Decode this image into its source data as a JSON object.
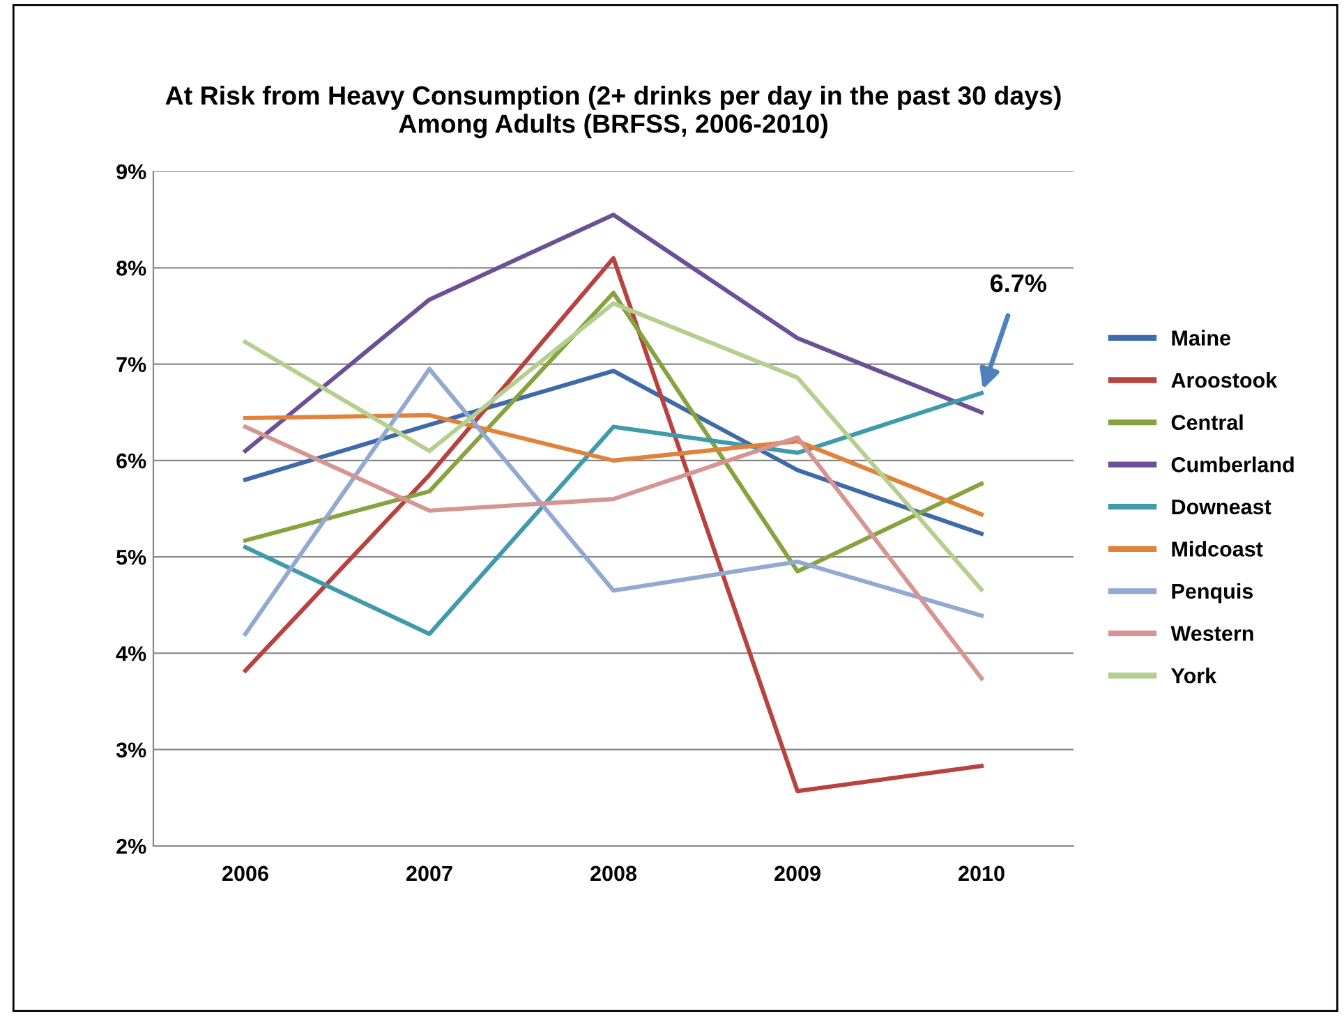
{
  "chart_data": {
    "type": "line",
    "title": "At Risk from Heavy Consumption (2+ drinks per day in the past 30 days)\nAmong Adults (BRFSS, 2006-2010)",
    "categories": [
      "2006",
      "2007",
      "2008",
      "2009",
      "2010"
    ],
    "series": [
      {
        "name": "Maine",
        "color": "#3e6aa8",
        "values": [
          5.8,
          6.37,
          6.93,
          5.9,
          5.24
        ]
      },
      {
        "name": "Aroostook",
        "color": "#b8423f",
        "values": [
          3.82,
          5.85,
          8.1,
          2.57,
          2.83
        ]
      },
      {
        "name": "Central",
        "color": "#87a33f",
        "values": [
          5.17,
          5.68,
          7.74,
          4.85,
          5.76
        ]
      },
      {
        "name": "Cumberland",
        "color": "#6d4f96",
        "values": [
          6.1,
          7.67,
          8.55,
          7.27,
          6.5
        ]
      },
      {
        "name": "Downeast",
        "color": "#3f9aab",
        "values": [
          5.1,
          4.2,
          6.35,
          6.08,
          6.7
        ]
      },
      {
        "name": "Midcoast",
        "color": "#e0833a",
        "values": [
          6.44,
          6.47,
          6.0,
          6.2,
          5.44
        ]
      },
      {
        "name": "Penquis",
        "color": "#93a9d2",
        "values": [
          4.2,
          6.95,
          4.65,
          4.95,
          4.39
        ]
      },
      {
        "name": "Western",
        "color": "#d69593",
        "values": [
          6.35,
          5.48,
          5.6,
          6.24,
          3.74
        ]
      },
      {
        "name": "York",
        "color": "#b5cf8f",
        "values": [
          7.23,
          6.1,
          7.63,
          6.86,
          4.66
        ]
      }
    ],
    "ylim": [
      2,
      9
    ],
    "yticks": [
      {
        "value": 2,
        "label": "2%"
      },
      {
        "value": 3,
        "label": "3%"
      },
      {
        "value": 4,
        "label": "4%"
      },
      {
        "value": 5,
        "label": "5%"
      },
      {
        "value": 6,
        "label": "6%"
      },
      {
        "value": 7,
        "label": "7%"
      },
      {
        "value": 8,
        "label": "8%"
      },
      {
        "value": 9,
        "label": "9%"
      }
    ],
    "grid": "y",
    "legend": "right",
    "marker": "none",
    "line_style": "solid",
    "annotations": [
      {
        "text": "6.7%",
        "x": "2010",
        "y": 6.7
      }
    ]
  }
}
